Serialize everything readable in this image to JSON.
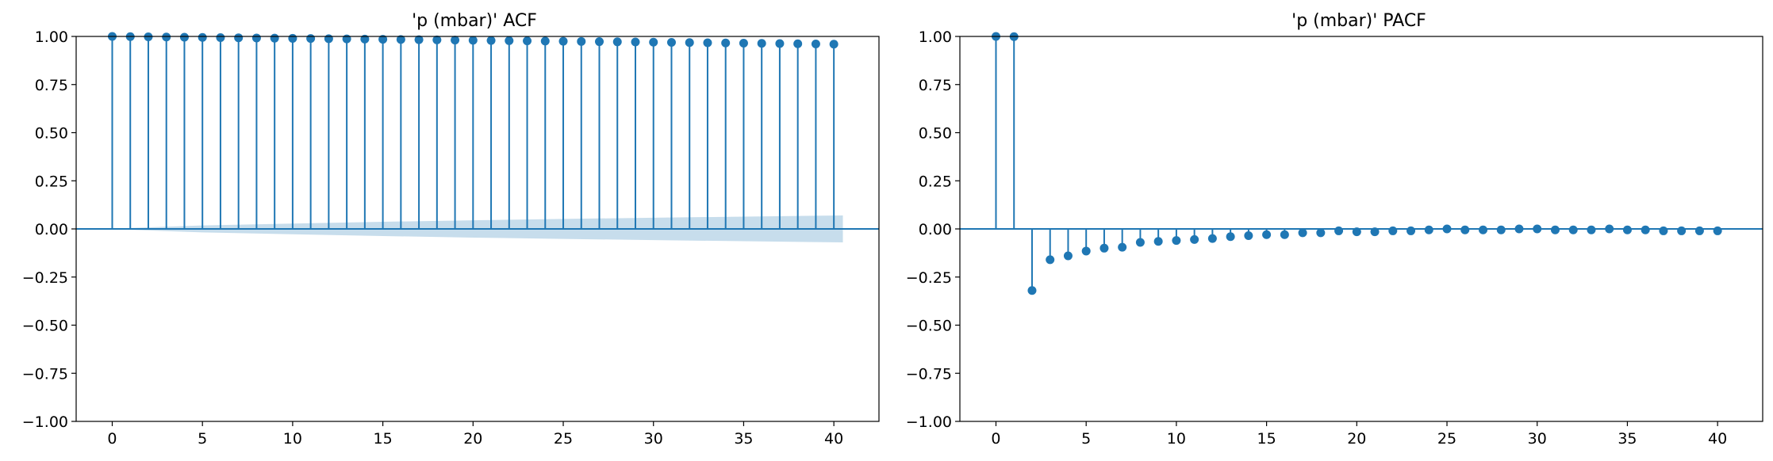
{
  "chart_data": [
    {
      "type": "stem",
      "title": "'p (mbar)' ACF",
      "xlim": [
        -2,
        42.5
      ],
      "ylim": [
        -1.0,
        1.0
      ],
      "xticks": [
        0,
        5,
        10,
        15,
        20,
        25,
        30,
        35,
        40
      ],
      "xtick_labels": [
        "0",
        "5",
        "10",
        "15",
        "20",
        "25",
        "30",
        "35",
        "40"
      ],
      "yticks": [
        -1.0,
        -0.75,
        -0.5,
        -0.25,
        0.0,
        0.25,
        0.5,
        0.75,
        1.0
      ],
      "ytick_labels": [
        "−1.00",
        "−0.75",
        "−0.50",
        "−0.25",
        "0.00",
        "0.25",
        "0.50",
        "0.75",
        "1.00"
      ],
      "lags": [
        0,
        1,
        2,
        3,
        4,
        5,
        6,
        7,
        8,
        9,
        10,
        11,
        12,
        13,
        14,
        15,
        16,
        17,
        18,
        19,
        20,
        21,
        22,
        23,
        24,
        25,
        26,
        27,
        28,
        29,
        30,
        31,
        32,
        33,
        34,
        35,
        36,
        37,
        38,
        39,
        40
      ],
      "values": [
        1.0,
        0.999,
        0.998,
        0.997,
        0.996,
        0.995,
        0.994,
        0.993,
        0.992,
        0.991,
        0.99,
        0.989,
        0.988,
        0.987,
        0.986,
        0.985,
        0.984,
        0.983,
        0.982,
        0.981,
        0.98,
        0.979,
        0.978,
        0.977,
        0.976,
        0.975,
        0.974,
        0.973,
        0.972,
        0.971,
        0.97,
        0.969,
        0.968,
        0.967,
        0.966,
        0.965,
        0.964,
        0.963,
        0.962,
        0.961,
        0.96
      ],
      "confidence_band": {
        "x": [
          0.5,
          5,
          10,
          15,
          20,
          25,
          30,
          35,
          40.5
        ],
        "upper": [
          0.003,
          0.018,
          0.028,
          0.037,
          0.045,
          0.052,
          0.058,
          0.064,
          0.07
        ],
        "lower": [
          -0.003,
          -0.018,
          -0.028,
          -0.037,
          -0.045,
          -0.052,
          -0.058,
          -0.064,
          -0.07
        ]
      }
    },
    {
      "type": "stem",
      "title": "'p (mbar)' PACF",
      "xlim": [
        -2,
        42.5
      ],
      "ylim": [
        -1.0,
        1.0
      ],
      "xticks": [
        0,
        5,
        10,
        15,
        20,
        25,
        30,
        35,
        40
      ],
      "xtick_labels": [
        "0",
        "5",
        "10",
        "15",
        "20",
        "25",
        "30",
        "35",
        "40"
      ],
      "yticks": [
        -1.0,
        -0.75,
        -0.5,
        -0.25,
        0.0,
        0.25,
        0.5,
        0.75,
        1.0
      ],
      "ytick_labels": [
        "−1.00",
        "−0.75",
        "−0.50",
        "−0.25",
        "0.00",
        "0.25",
        "0.50",
        "0.75",
        "1.00"
      ],
      "lags": [
        0,
        1,
        2,
        3,
        4,
        5,
        6,
        7,
        8,
        9,
        10,
        11,
        12,
        13,
        14,
        15,
        16,
        17,
        18,
        19,
        20,
        21,
        22,
        23,
        24,
        25,
        26,
        27,
        28,
        29,
        30,
        31,
        32,
        33,
        34,
        35,
        36,
        37,
        38,
        39,
        40
      ],
      "values": [
        1.0,
        0.999,
        -0.32,
        -0.16,
        -0.14,
        -0.115,
        -0.1,
        -0.095,
        -0.07,
        -0.065,
        -0.06,
        -0.055,
        -0.05,
        -0.04,
        -0.035,
        -0.03,
        -0.03,
        -0.02,
        -0.02,
        -0.01,
        -0.015,
        -0.015,
        -0.01,
        -0.01,
        -0.005,
        0.0,
        -0.005,
        -0.005,
        -0.005,
        0.0,
        0.0,
        -0.005,
        -0.005,
        -0.005,
        0.0,
        -0.005,
        -0.005,
        -0.01,
        -0.01,
        -0.01,
        -0.01
      ]
    }
  ],
  "colors": {
    "stem": "#1f77b4",
    "band": "#1f77b4",
    "axis": "#000000"
  }
}
